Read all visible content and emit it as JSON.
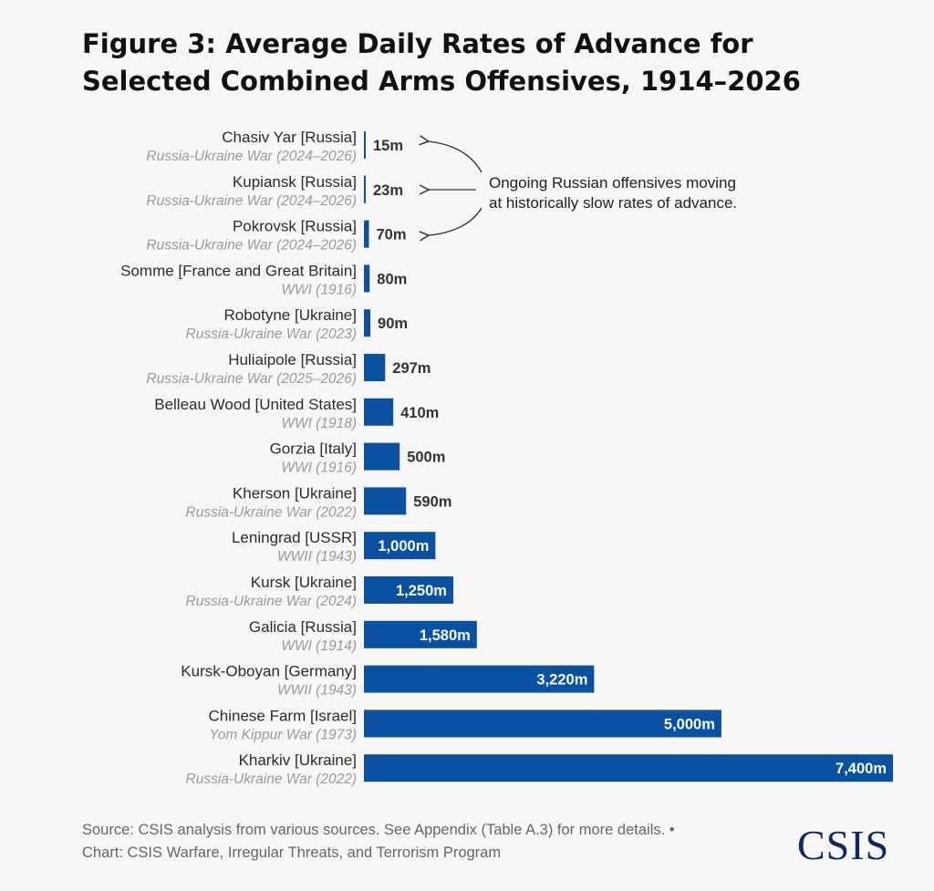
{
  "title": "Figure 3: Average Daily Rates of Advance for Selected Combined Arms Offensives, 1914–2026",
  "annotation": {
    "lines": [
      "Ongoing Russian offensives moving",
      "at historically slow rates of advance."
    ]
  },
  "source": {
    "line1": "Source: CSIS analysis from various sources. See Appendix (Table A.3) for more details. •",
    "line2": "Chart: CSIS Warfare, Irregular Threats, and Terrorism Program"
  },
  "logo_text": "CSIS",
  "colors": {
    "bar": "#0a51a1",
    "label_primary": "#2b2b2b",
    "label_secondary": "#9a9a9a",
    "value_outside": "#333333",
    "value_inside": "#ffffff"
  },
  "chart_data": {
    "type": "bar",
    "orientation": "horizontal",
    "unit": "m",
    "xlim": [
      0,
      7400
    ],
    "grid": false,
    "categories": [
      {
        "name": "Chasiv Yar [Russia]",
        "sub": "Russia-Ukraine War (2024–2026)",
        "value": 15,
        "label": "15m"
      },
      {
        "name": "Kupiansk [Russia]",
        "sub": "Russia-Ukraine War (2024–2026)",
        "value": 23,
        "label": "23m"
      },
      {
        "name": "Pokrovsk [Russia]",
        "sub": "Russia-Ukraine War (2024–2026)",
        "value": 70,
        "label": "70m"
      },
      {
        "name": "Somme [France and Great Britain]",
        "sub": "WWI (1916)",
        "value": 80,
        "label": "80m"
      },
      {
        "name": "Robotyne [Ukraine]",
        "sub": "Russia-Ukraine War (2023)",
        "value": 90,
        "label": "90m"
      },
      {
        "name": "Huliaipole [Russia]",
        "sub": "Russia-Ukraine War (2025–2026)",
        "value": 297,
        "label": "297m"
      },
      {
        "name": "Belleau Wood [United States]",
        "sub": "WWI (1918)",
        "value": 410,
        "label": "410m"
      },
      {
        "name": "Gorzia [Italy]",
        "sub": "WWI (1916)",
        "value": 500,
        "label": "500m"
      },
      {
        "name": "Kherson [Ukraine]",
        "sub": "Russia-Ukraine War (2022)",
        "value": 590,
        "label": "590m"
      },
      {
        "name": "Leningrad [USSR]",
        "sub": "WWII (1943)",
        "value": 1000,
        "label": "1,000m"
      },
      {
        "name": "Kursk [Ukraine]",
        "sub": "Russia-Ukraine War (2024)",
        "value": 1250,
        "label": "1,250m"
      },
      {
        "name": "Galicia [Russia]",
        "sub": "WWI (1914)",
        "value": 1580,
        "label": "1,580m"
      },
      {
        "name": "Kursk-Oboyan [Germany]",
        "sub": "WWII (1943)",
        "value": 3220,
        "label": "3,220m"
      },
      {
        "name": "Chinese Farm [Israel]",
        "sub": "Yom Kippur War (1973)",
        "value": 5000,
        "label": "5,000m"
      },
      {
        "name": "Kharkiv [Ukraine]",
        "sub": "Russia-Ukraine War (2022)",
        "value": 7400,
        "label": "7,400m"
      }
    ]
  }
}
